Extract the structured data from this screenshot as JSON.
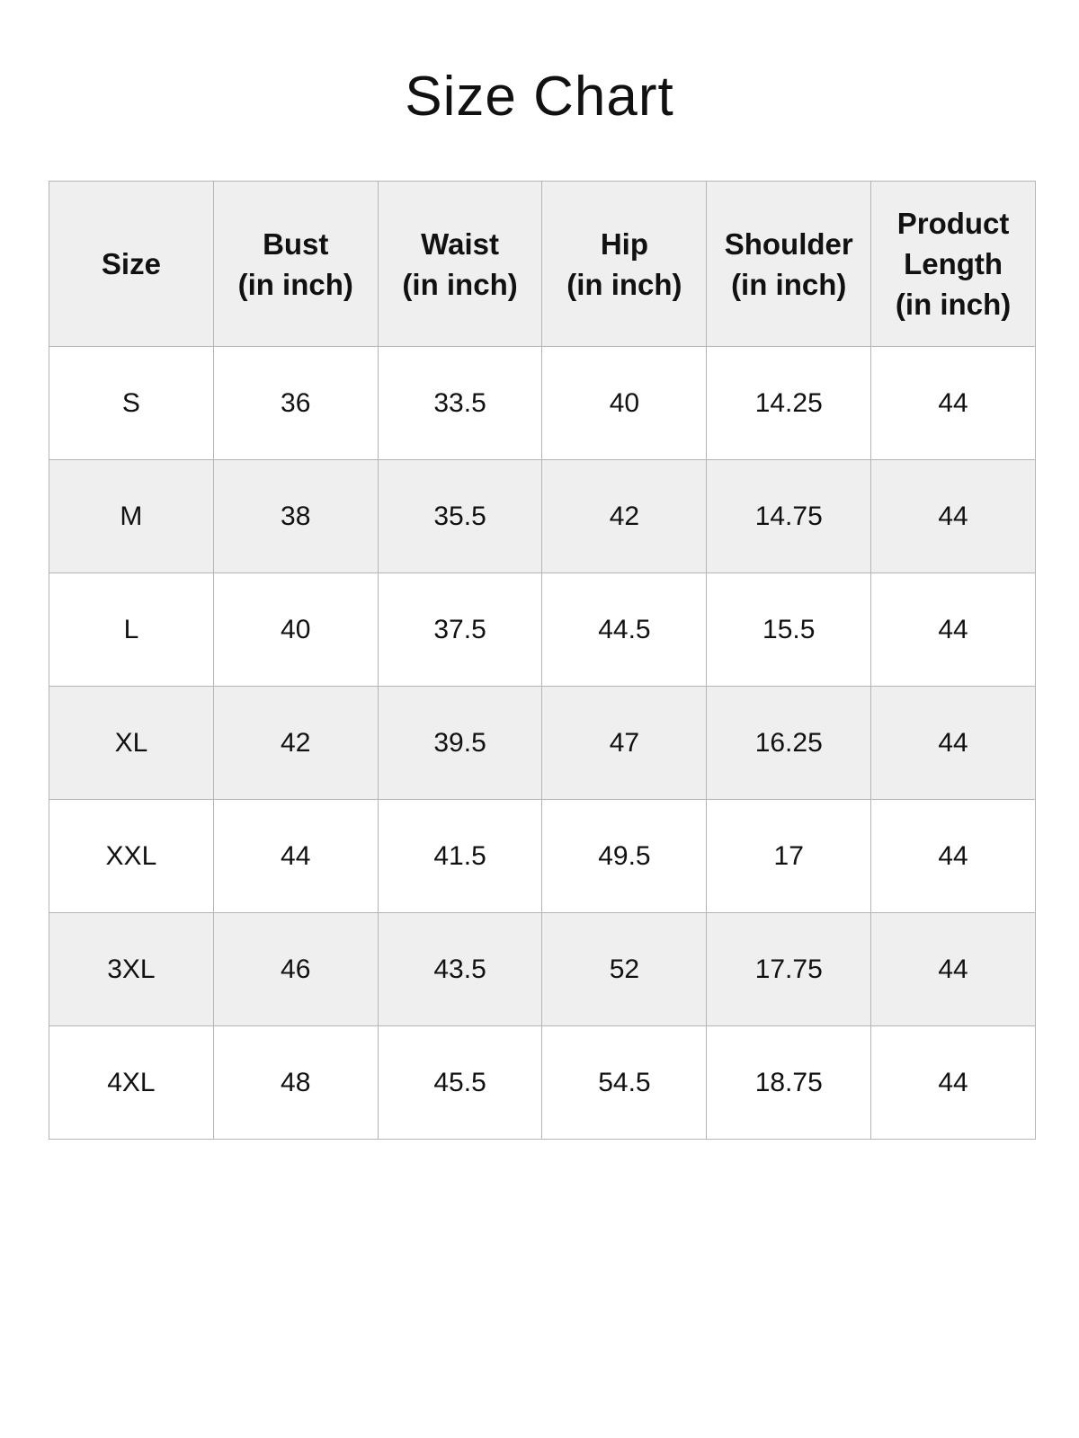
{
  "title": "Size Chart",
  "colors": {
    "header_bg": "#efefef",
    "alt_row_bg": "#efefef",
    "border": "#b5b5b5"
  },
  "columns": [
    {
      "line1": "Size",
      "line2": "",
      "line3": ""
    },
    {
      "line1": "Bust",
      "line2": "(in inch)",
      "line3": ""
    },
    {
      "line1": "Waist",
      "line2": "(in inch)",
      "line3": ""
    },
    {
      "line1": "Hip",
      "line2": "(in inch)",
      "line3": ""
    },
    {
      "line1": "Shoulder",
      "line2": "(in inch)",
      "line3": ""
    },
    {
      "line1": "Product",
      "line2": "Length",
      "line3": "(in inch)"
    }
  ],
  "rows": [
    [
      "S",
      "36",
      "33.5",
      "40",
      "14.25",
      "44"
    ],
    [
      "M",
      "38",
      "35.5",
      "42",
      "14.75",
      "44"
    ],
    [
      "L",
      "40",
      "37.5",
      "44.5",
      "15.5",
      "44"
    ],
    [
      "XL",
      "42",
      "39.5",
      "47",
      "16.25",
      "44"
    ],
    [
      "XXL",
      "44",
      "41.5",
      "49.5",
      "17",
      "44"
    ],
    [
      "3XL",
      "46",
      "43.5",
      "52",
      "17.75",
      "44"
    ],
    [
      "4XL",
      "48",
      "45.5",
      "54.5",
      "18.75",
      "44"
    ]
  ]
}
